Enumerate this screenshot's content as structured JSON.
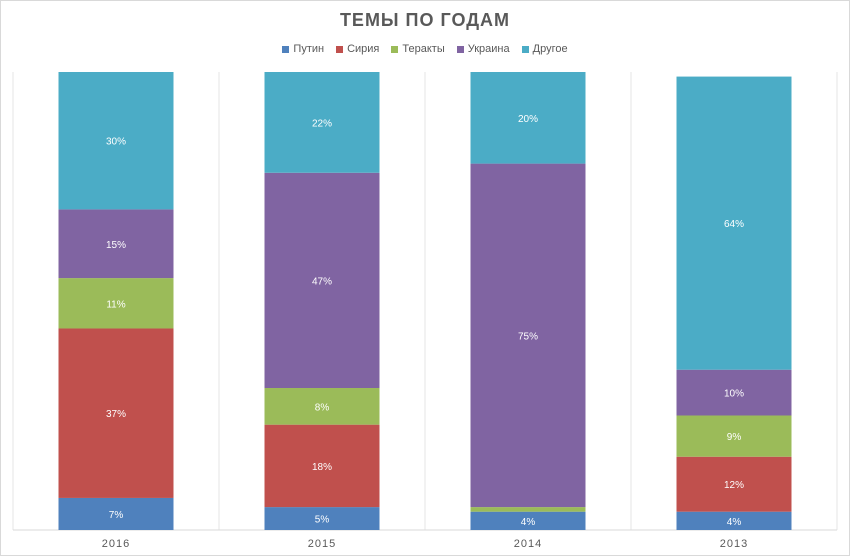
{
  "chart_data": {
    "type": "bar",
    "stacked": true,
    "title": "ТЕМЫ ПО ГОДАМ",
    "categories": [
      "2016",
      "2015",
      "2014",
      "2013"
    ],
    "ylim": [
      0,
      100
    ],
    "legend_position": "top",
    "grid": true,
    "series": [
      {
        "name": "Путин",
        "color": "#4f81bd",
        "values": [
          7,
          5,
          4,
          4
        ],
        "labels": [
          "7%",
          "5%",
          "4%",
          "4%"
        ]
      },
      {
        "name": "Сирия",
        "color": "#c0504d",
        "values": [
          37,
          18,
          0,
          12
        ],
        "labels": [
          "37%",
          "18%",
          "",
          "12%"
        ]
      },
      {
        "name": "Теракты",
        "color": "#9bbb59",
        "values": [
          11,
          8,
          1,
          9
        ],
        "labels": [
          "11%",
          "8%",
          "",
          "9%"
        ]
      },
      {
        "name": "Украина",
        "color": "#8064a2",
        "values": [
          15,
          47,
          75,
          10
        ],
        "labels": [
          "15%",
          "47%",
          "75%",
          "10%"
        ]
      },
      {
        "name": "Другое",
        "color": "#4bacc6",
        "values": [
          30,
          22,
          20,
          64
        ],
        "labels": [
          "30%",
          "22%",
          "20%",
          "64%"
        ]
      }
    ]
  }
}
